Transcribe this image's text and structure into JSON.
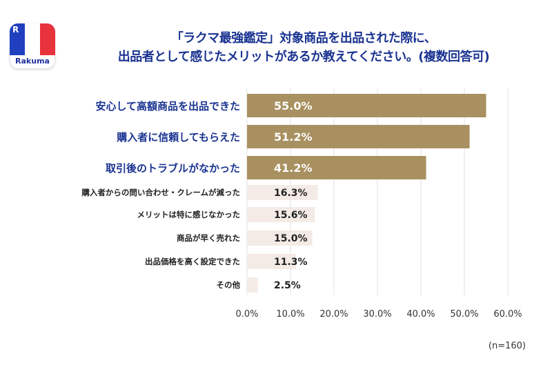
{
  "logo": {
    "text": "Rakuma",
    "mark": "R"
  },
  "title_lines": [
    "「ラクマ最強鑑定」対象商品を出品された際に、",
    "出品者として感じたメリットがあるか教えてください。(複数回答可)"
  ],
  "chart_data": {
    "type": "bar",
    "orientation": "horizontal",
    "categories": [
      "安心して高額商品を出品できた",
      "購入者に信頼してもらえた",
      "取引後のトラブルがなかった",
      "購入者からの問い合わせ・クレームが減った",
      "メリットは特に感じなかった",
      "商品が早く売れた",
      "出品価格を高く設定できた",
      "その他"
    ],
    "values": [
      55.0,
      51.2,
      41.2,
      16.3,
      15.6,
      15.0,
      11.3,
      2.5
    ],
    "value_labels": [
      "55.0%",
      "51.2%",
      "41.2%",
      "16.3%",
      "15.6%",
      "15.0%",
      "11.3%",
      "2.5%"
    ],
    "highlight_count": 3,
    "xlim": [
      0,
      60
    ],
    "x_ticks": [
      "0.0%",
      "10.0%",
      "20.0%",
      "30.0%",
      "40.0%",
      "50.0%",
      "60.0%"
    ],
    "colors": {
      "highlight_bar": "#a99060",
      "normal_bar": "#f4ebe7",
      "highlight_label": "#1a3391",
      "normal_label": "#222222",
      "grid": "#e0e0e0"
    },
    "note": "(n=160)"
  }
}
